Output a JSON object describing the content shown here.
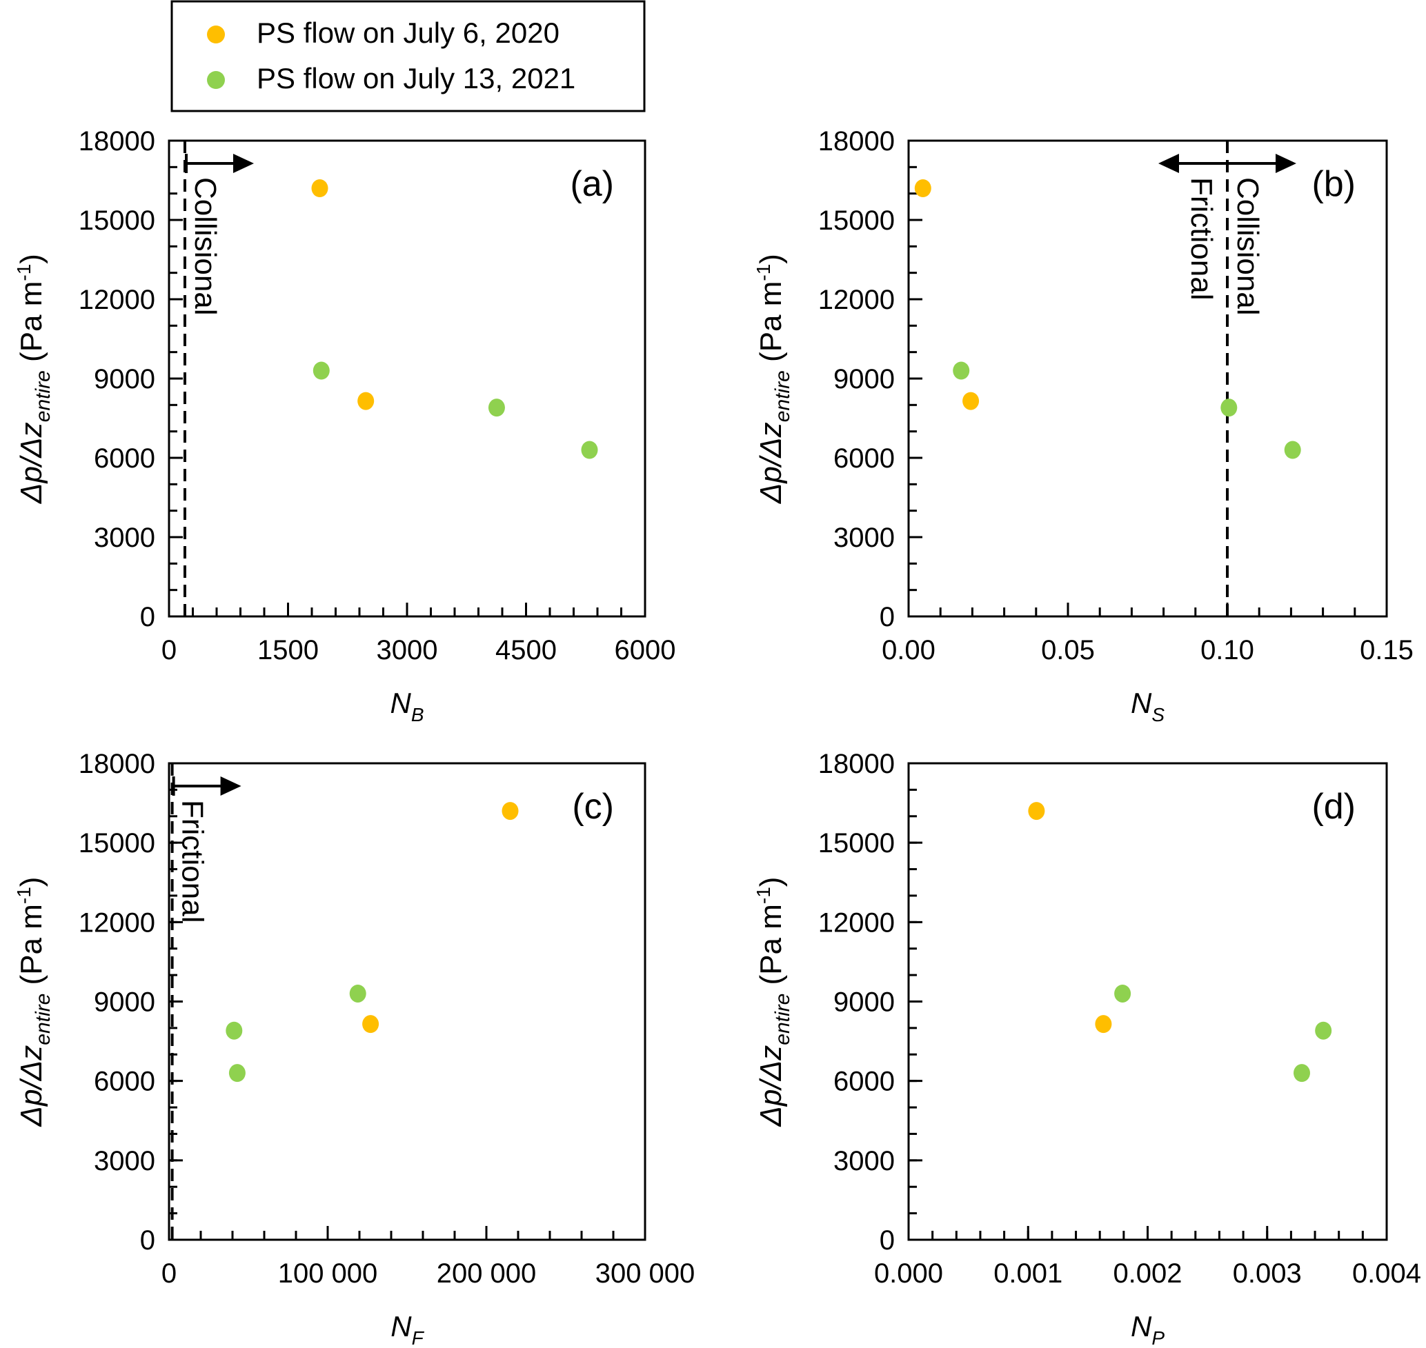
{
  "legend": {
    "items": [
      {
        "label": "PS flow on July 6, 2020",
        "color": "#FFBE00"
      },
      {
        "label": "PS flow on July 13, 2021",
        "color": "#8FD14F"
      }
    ]
  },
  "chart_data": [
    {
      "type": "scatter",
      "panel_label": "(a)",
      "xlabel": "N_B",
      "xlabel_main": "N",
      "xlabel_sub": "B",
      "ylabel_main": "Δp/Δz",
      "ylabel_sub": "entire",
      "ylabel_unit": " (Pa m",
      "ylabel_exp": "-1",
      "ylabel_close": ")",
      "xlim": [
        0,
        6000
      ],
      "ylim": [
        0,
        18000
      ],
      "xticks": [
        0,
        1500,
        3000,
        4500,
        6000
      ],
      "xtick_labels": [
        "0",
        "1500",
        "3000",
        "4500",
        "6000"
      ],
      "xminor": 300,
      "yticks": [
        0,
        3000,
        6000,
        9000,
        12000,
        15000,
        18000
      ],
      "ytick_labels": [
        "0",
        "3000",
        "6000",
        "9000",
        "12000",
        "15000",
        "18000"
      ],
      "yminor": 1000,
      "threshold": {
        "x": 200,
        "labels": [
          "Collisional"
        ],
        "arrows": [
          "right"
        ]
      },
      "series": [
        {
          "name": "PS flow on July 6, 2020",
          "color": "#FFBE00",
          "points": [
            [
              1900,
              16200
            ],
            [
              2480,
              8150
            ]
          ]
        },
        {
          "name": "PS flow on July 13, 2021",
          "color": "#8FD14F",
          "points": [
            [
              1920,
              9300
            ],
            [
              4130,
              7900
            ],
            [
              5300,
              6300
            ]
          ]
        }
      ]
    },
    {
      "type": "scatter",
      "panel_label": "(b)",
      "xlabel": "N_S",
      "xlabel_main": "N",
      "xlabel_sub": "S",
      "ylabel_main": "Δp/Δz",
      "ylabel_sub": "entire",
      "ylabel_unit": " (Pa m",
      "ylabel_exp": "-1",
      "ylabel_close": ")",
      "xlim": [
        0,
        0.15
      ],
      "ylim": [
        0,
        18000
      ],
      "xticks": [
        0,
        0.05,
        0.1,
        0.15
      ],
      "xtick_labels": [
        "0.00",
        "0.05",
        "0.10",
        "0.15"
      ],
      "xminor": 0.01,
      "yticks": [
        0,
        3000,
        6000,
        9000,
        12000,
        15000,
        18000
      ],
      "ytick_labels": [
        "0",
        "3000",
        "6000",
        "9000",
        "12000",
        "15000",
        "18000"
      ],
      "yminor": 1000,
      "threshold": {
        "x": 0.1,
        "labels": [
          "Frictional",
          "Collisional"
        ],
        "arrows": [
          "left",
          "right"
        ]
      },
      "series": [
        {
          "name": "PS flow on July 6, 2020",
          "color": "#FFBE00",
          "points": [
            [
              0.0045,
              16200
            ],
            [
              0.0195,
              8150
            ]
          ]
        },
        {
          "name": "PS flow on July 13, 2021",
          "color": "#8FD14F",
          "points": [
            [
              0.0165,
              9300
            ],
            [
              0.1005,
              7900
            ],
            [
              0.1205,
              6300
            ]
          ]
        }
      ]
    },
    {
      "type": "scatter",
      "panel_label": "(c)",
      "xlabel": "N_F",
      "xlabel_main": "N",
      "xlabel_sub": "F",
      "ylabel_main": "Δp/Δz",
      "ylabel_sub": "entire",
      "ylabel_unit": " (Pa m",
      "ylabel_exp": "-1",
      "ylabel_close": ")",
      "xlim": [
        0,
        300000
      ],
      "ylim": [
        0,
        18000
      ],
      "xticks": [
        0,
        100000,
        200000,
        300000
      ],
      "xtick_labels": [
        "0",
        "100 000",
        "200 000",
        "300 000"
      ],
      "xminor": 20000,
      "yticks": [
        0,
        3000,
        6000,
        9000,
        12000,
        15000,
        18000
      ],
      "ytick_labels": [
        "0",
        "3000",
        "6000",
        "9000",
        "12000",
        "15000",
        "18000"
      ],
      "yminor": 1000,
      "threshold": {
        "x": 2000,
        "labels": [
          "Frictional"
        ],
        "arrows": [
          "right"
        ]
      },
      "series": [
        {
          "name": "PS flow on July 6, 2020",
          "color": "#FFBE00",
          "points": [
            [
              215000,
              16200
            ],
            [
              127000,
              8150
            ]
          ]
        },
        {
          "name": "PS flow on July 13, 2021",
          "color": "#8FD14F",
          "points": [
            [
              119000,
              9300
            ],
            [
              41000,
              7900
            ],
            [
              43000,
              6300
            ]
          ]
        }
      ]
    },
    {
      "type": "scatter",
      "panel_label": "(d)",
      "xlabel": "N_P",
      "xlabel_main": "N",
      "xlabel_sub": "P",
      "ylabel_main": "Δp/Δz",
      "ylabel_sub": "entire",
      "ylabel_unit": " (Pa m",
      "ylabel_exp": "-1",
      "ylabel_close": ")",
      "xlim": [
        0,
        0.004
      ],
      "ylim": [
        0,
        18000
      ],
      "xticks": [
        0,
        0.001,
        0.002,
        0.003,
        0.004
      ],
      "xtick_labels": [
        "0.000",
        "0.001",
        "0.002",
        "0.003",
        "0.004"
      ],
      "xminor": 0.0002,
      "yticks": [
        0,
        3000,
        6000,
        9000,
        12000,
        15000,
        18000
      ],
      "ytick_labels": [
        "0",
        "3000",
        "6000",
        "9000",
        "12000",
        "15000",
        "18000"
      ],
      "yminor": 1000,
      "threshold": null,
      "series": [
        {
          "name": "PS flow on July 6, 2020",
          "color": "#FFBE00",
          "points": [
            [
              0.00107,
              16200
            ],
            [
              0.00163,
              8150
            ]
          ]
        },
        {
          "name": "PS flow on July 13, 2021",
          "color": "#8FD14F",
          "points": [
            [
              0.00179,
              9300
            ],
            [
              0.00347,
              7900
            ],
            [
              0.00329,
              6300
            ]
          ]
        }
      ]
    }
  ]
}
